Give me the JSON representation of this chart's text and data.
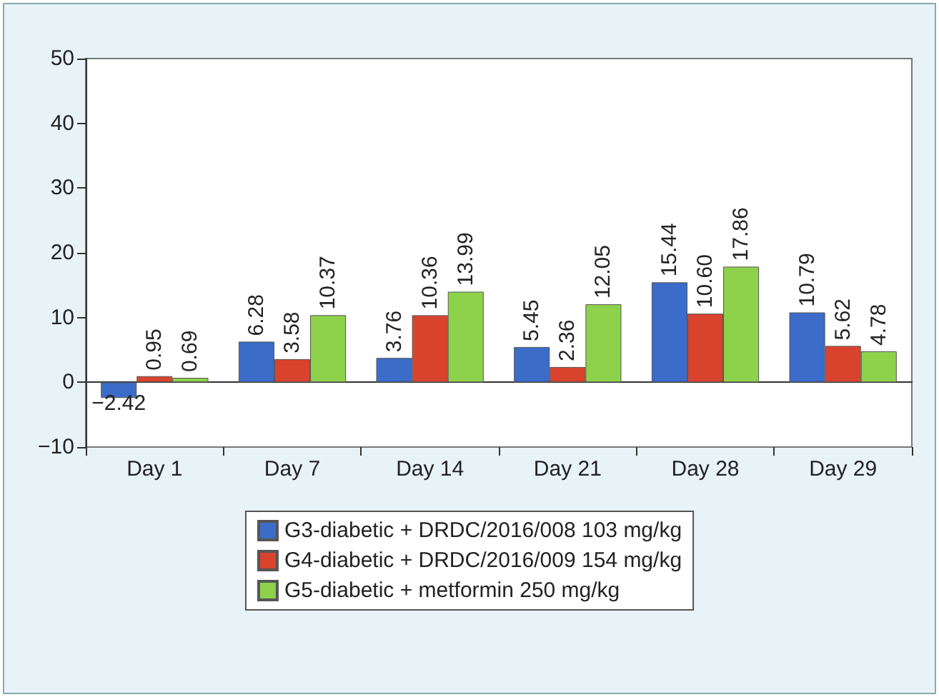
{
  "chart_data": {
    "type": "bar",
    "categories": [
      "Day 1",
      "Day 7",
      "Day 14",
      "Day 21",
      "Day 28",
      "Day 29"
    ],
    "series": [
      {
        "name": "G3-diabetic + DRDC/2016/008 103 mg/kg",
        "color": "#3b6cc9",
        "values": [
          -2.42,
          6.28,
          3.76,
          5.45,
          15.44,
          10.79
        ]
      },
      {
        "name": "G4-diabetic + DRDC/2016/009 154 mg/kg",
        "color": "#d9432e",
        "values": [
          0.95,
          3.58,
          10.36,
          2.36,
          10.6,
          5.62
        ]
      },
      {
        "name": "G5-diabetic + metformin 250 mg/kg",
        "color": "#8ed24c",
        "values": [
          0.69,
          10.37,
          13.99,
          12.05,
          17.86,
          4.78
        ]
      }
    ],
    "value_labels": [
      [
        "−2.42",
        "6.28",
        "3.76",
        "5.45",
        "15.44",
        "10.79"
      ],
      [
        "0.95",
        "3.58",
        "10.36",
        "2.36",
        "10.60",
        "5.62"
      ],
      [
        "0.69",
        "10.37",
        "13.99",
        "12.05",
        "17.86",
        "4.78"
      ]
    ],
    "ylim": [
      -10,
      50
    ],
    "yticks": [
      -10,
      0,
      10,
      20,
      30,
      40,
      50
    ],
    "legend": "bottom"
  }
}
